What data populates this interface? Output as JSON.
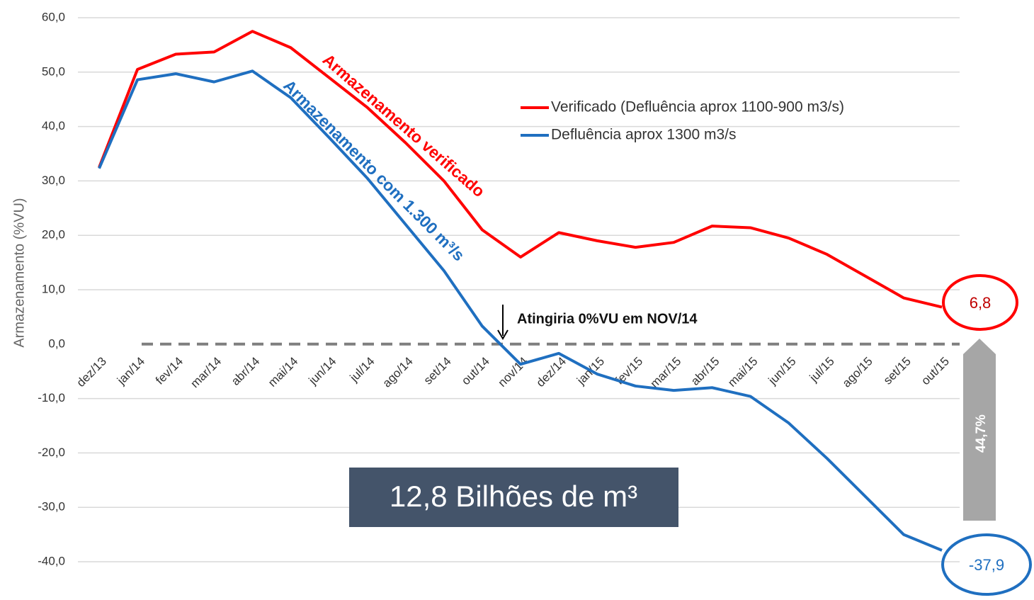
{
  "chart_data": {
    "type": "line",
    "y_label": "Armazenamento (%VU)",
    "categories": [
      "dez/13",
      "jan/14",
      "fev/14",
      "mar/14",
      "abr/14",
      "mai/14",
      "jun/14",
      "jul/14",
      "ago/14",
      "set/14",
      "out/14",
      "nov/14",
      "dez/14",
      "jan/15",
      "fev/15",
      "mar/15",
      "abr/15",
      "mai/15",
      "jun/15",
      "jul/15",
      "ago/15",
      "set/15",
      "out/15"
    ],
    "series": [
      {
        "name": "Verificado (Defluência aprox 1100-900 m3/s)",
        "color": "#ff0000",
        "values": [
          32.5,
          50.5,
          53.3,
          53.7,
          57.5,
          54.5,
          49,
          43.5,
          37,
          30,
          21,
          16,
          20.5,
          19,
          17.8,
          18.7,
          21.7,
          21.4,
          19.5,
          16.5,
          12.5,
          8.5,
          6.8
        ],
        "value_labels": [
          null,
          null,
          null,
          null,
          null,
          null,
          null,
          null,
          null,
          null,
          null,
          null,
          null,
          null,
          null,
          null,
          null,
          null,
          null,
          null,
          null,
          null,
          "6,8"
        ]
      },
      {
        "name": "Defluência aprox 1300 m3/s",
        "color": "#1f6fc0",
        "values": [
          32.3,
          48.6,
          49.7,
          48.2,
          50.2,
          45.3,
          38,
          30.5,
          22,
          13.5,
          3.3,
          -3.7,
          -1.7,
          -5.5,
          -7.7,
          -8.5,
          -8,
          -9.6,
          -14.5,
          -21,
          -28,
          -35,
          -37.9
        ],
        "value_labels": [
          null,
          null,
          null,
          null,
          null,
          null,
          null,
          null,
          null,
          null,
          null,
          null,
          null,
          null,
          null,
          null,
          null,
          null,
          null,
          null,
          null,
          null,
          "-37,9"
        ]
      }
    ],
    "ylim": [
      -40,
      60
    ],
    "yticks": [
      {
        "value": -40,
        "label": "-40,0"
      },
      {
        "value": -30,
        "label": "-30,0"
      },
      {
        "value": -20,
        "label": "-20,0"
      },
      {
        "value": -10,
        "label": "-10,0"
      },
      {
        "value": 0,
        "label": "0,0"
      },
      {
        "value": 10,
        "label": "10,0"
      },
      {
        "value": 20,
        "label": "20,0"
      },
      {
        "value": 30,
        "label": "30,0"
      },
      {
        "value": 40,
        "label": "40,0"
      },
      {
        "value": 50,
        "label": "50,0"
      },
      {
        "value": 60,
        "label": "60,0"
      }
    ],
    "grid": true,
    "annotations": {
      "red_curve": "Armazenamento verificado",
      "blue_curve": "Armazenamento com 1.300 m³/s",
      "zero": "Atingiria 0%VU em NOV/14",
      "gap": "44,7%",
      "volume": "12,8 Bilhões de m³"
    }
  }
}
